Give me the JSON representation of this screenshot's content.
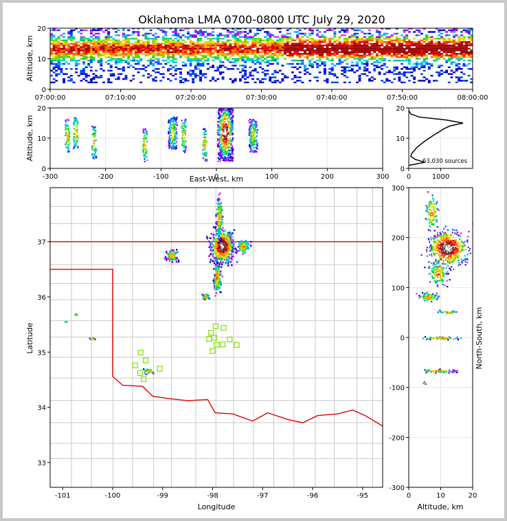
{
  "title": "Oklahoma LMA 0700-0800 UTC July 29, 2020",
  "colors": {
    "state_border": "#e00000",
    "county": "#c8c8c8",
    "sites": "#7ee000"
  },
  "chart_data": [
    {
      "type": "heatmap",
      "panel": "time-height",
      "x_tick_labels": [
        "07:00:00",
        "07:10:00",
        "07:20:00",
        "07:30:00",
        "07:40:00",
        "07:50:00",
        "08:00:00"
      ],
      "xlim": [
        "07:00:00",
        "08:00:00"
      ],
      "ylabel": "Altitude, km",
      "ylim": [
        0,
        20
      ],
      "y_ticks": [
        0,
        10,
        20
      ]
    },
    {
      "type": "heatmap",
      "panel": "east-west-altitude",
      "xlabel": "East-West, km",
      "xlim": [
        -300,
        300
      ],
      "x_ticks": [
        -300,
        -200,
        -100,
        0,
        100,
        200,
        300
      ],
      "ylabel": "Altitude, km",
      "ylim": [
        0,
        20
      ],
      "y_ticks": [
        0,
        10,
        20
      ],
      "clusters": [
        {
          "x": -270,
          "z": 11
        },
        {
          "x": -255,
          "z": 12
        },
        {
          "x": -222,
          "z": 9
        },
        {
          "x": -130,
          "z": 8
        },
        {
          "x": -80,
          "z": 12
        },
        {
          "x": -60,
          "z": 11
        },
        {
          "x": -22,
          "z": 8
        },
        {
          "x": 15,
          "z": 12
        },
        {
          "x": 65,
          "z": 11
        }
      ]
    },
    {
      "type": "line",
      "panel": "altitude-histogram",
      "annotation": "63,030 sources",
      "xlim": [
        0,
        2000
      ],
      "x_ticks": [
        0,
        1000
      ],
      "ylim": [
        0,
        20
      ],
      "y_ticks": [
        0,
        10,
        20
      ],
      "profile": {
        "altitude_km": [
          1,
          2,
          3,
          4,
          5,
          6,
          7,
          8,
          9,
          10,
          11,
          12,
          13,
          14,
          15,
          16,
          17,
          18,
          19
        ],
        "count": [
          0,
          500,
          200,
          60,
          100,
          180,
          260,
          380,
          500,
          640,
          780,
          940,
          1080,
          1280,
          1700,
          1180,
          320,
          60,
          10
        ]
      }
    },
    {
      "type": "scatter",
      "panel": "plan-view",
      "xlabel": "Longitude",
      "xlim": [
        -101.25,
        -94.6
      ],
      "x_ticks": [
        -101,
        -100,
        -99,
        -98,
        -97,
        -96,
        -95
      ],
      "ylabel": "Latitude",
      "ylim": [
        32.55,
        37.98
      ],
      "y_ticks": [
        33,
        34,
        35,
        36,
        37
      ],
      "sites": [
        {
          "lon": -97.94,
          "lat": 35.47
        },
        {
          "lon": -97.78,
          "lat": 35.44
        },
        {
          "lon": -98.03,
          "lat": 35.35
        },
        {
          "lon": -97.97,
          "lat": 35.26
        },
        {
          "lon": -98.07,
          "lat": 35.24
        },
        {
          "lon": -97.66,
          "lat": 35.23
        },
        {
          "lon": -97.8,
          "lat": 35.14
        },
        {
          "lon": -97.92,
          "lat": 35.13
        },
        {
          "lon": -97.52,
          "lat": 35.13
        },
        {
          "lon": -98.0,
          "lat": 35.02
        },
        {
          "lon": -99.44,
          "lat": 34.99
        },
        {
          "lon": -99.34,
          "lat": 34.85
        },
        {
          "lon": -99.55,
          "lat": 34.76
        },
        {
          "lon": -99.06,
          "lat": 34.7
        },
        {
          "lon": -99.45,
          "lat": 34.62
        },
        {
          "lon": -99.38,
          "lat": 34.51
        }
      ]
    },
    {
      "type": "heatmap",
      "panel": "altitude-north-south",
      "xlabel": "Altitude, km",
      "xlim": [
        0,
        20
      ],
      "x_ticks": [
        0,
        10,
        20
      ],
      "ylabel": "North-South, km",
      "ylim": [
        -300,
        300
      ],
      "y_ticks": [
        -300,
        -200,
        -100,
        0,
        100,
        200,
        300
      ]
    }
  ]
}
